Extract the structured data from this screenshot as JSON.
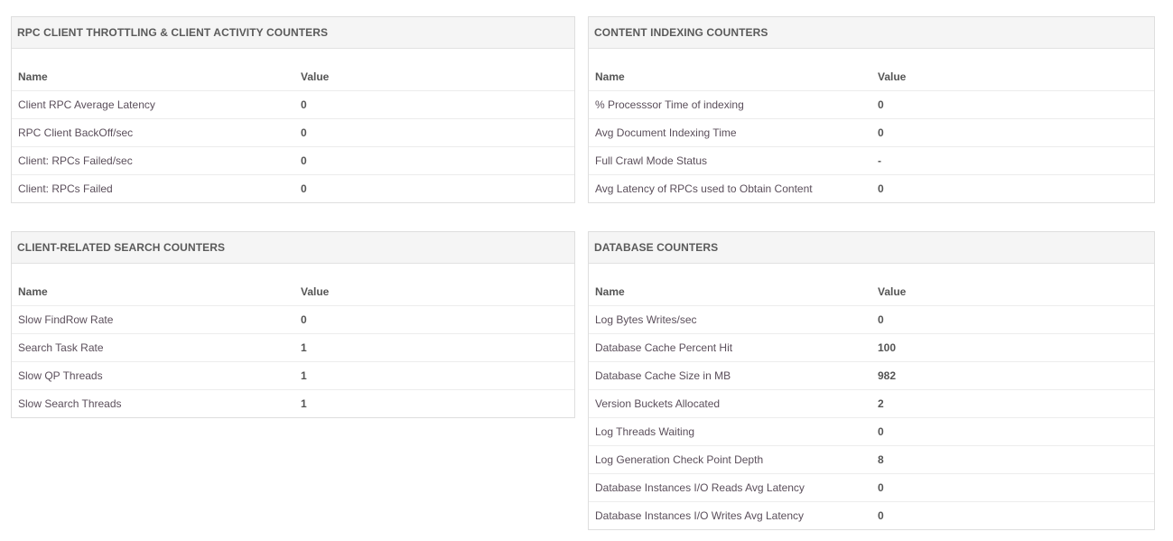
{
  "panels": [
    {
      "title": "RPC CLIENT THROTTLING & CLIENT ACTIVITY COUNTERS",
      "columns": [
        "Name",
        "Value"
      ],
      "rows": [
        {
          "name": "Client RPC Average Latency",
          "value": "0"
        },
        {
          "name": "RPC Client BackOff/sec",
          "value": "0"
        },
        {
          "name": "Client: RPCs Failed/sec",
          "value": "0"
        },
        {
          "name": "Client: RPCs Failed",
          "value": "0"
        }
      ]
    },
    {
      "title": "CONTENT INDEXING COUNTERS",
      "columns": [
        "Name",
        "Value"
      ],
      "rows": [
        {
          "name": "% Processsor Time of indexing",
          "value": "0"
        },
        {
          "name": "Avg Document Indexing Time",
          "value": "0"
        },
        {
          "name": "Full Crawl Mode Status",
          "value": "-"
        },
        {
          "name": "Avg Latency of RPCs used to Obtain Content",
          "value": "0"
        }
      ]
    },
    {
      "title": "CLIENT-RELATED SEARCH COUNTERS",
      "columns": [
        "Name",
        "Value"
      ],
      "rows": [
        {
          "name": "Slow FindRow Rate",
          "value": "0"
        },
        {
          "name": "Search Task Rate",
          "value": "1"
        },
        {
          "name": "Slow QP Threads",
          "value": "1"
        },
        {
          "name": "Slow Search Threads",
          "value": "1"
        }
      ]
    },
    {
      "title": "DATABASE COUNTERS",
      "columns": [
        "Name",
        "Value"
      ],
      "rows": [
        {
          "name": "Log Bytes Writes/sec",
          "value": "0"
        },
        {
          "name": "Database Cache Percent Hit",
          "value": "100"
        },
        {
          "name": "Database Cache Size in MB",
          "value": "982"
        },
        {
          "name": "Version Buckets Allocated",
          "value": "2"
        },
        {
          "name": "Log Threads Waiting",
          "value": "0"
        },
        {
          "name": "Log Generation Check Point Depth",
          "value": "8"
        },
        {
          "name": "Database Instances I/O Reads Avg Latency",
          "value": "0"
        },
        {
          "name": "Database Instances I/O Writes Avg Latency",
          "value": "0"
        }
      ]
    }
  ]
}
